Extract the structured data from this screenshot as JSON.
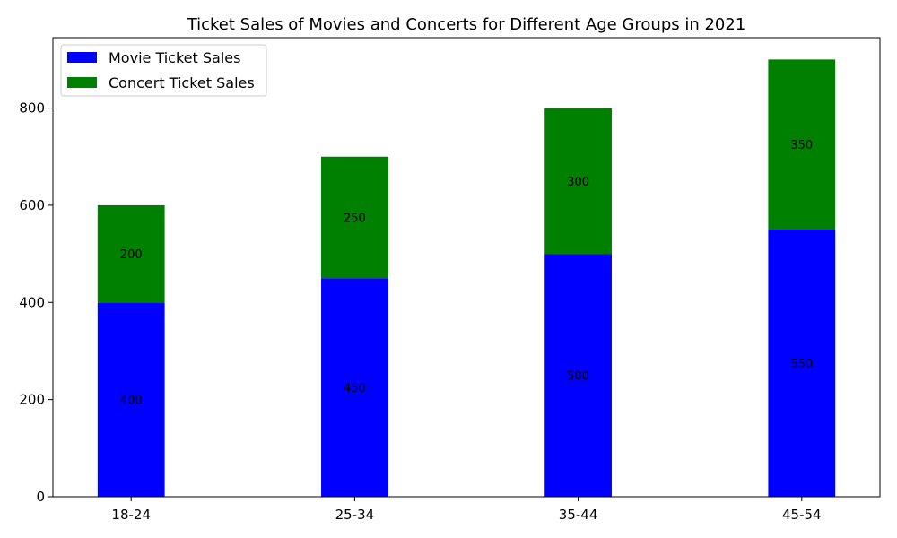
{
  "chart_data": {
    "type": "bar",
    "stacked": true,
    "title": "Ticket Sales of Movies and Concerts for Different Age Groups in 2021",
    "xlabel": "",
    "ylabel": "",
    "categories": [
      "18-24",
      "25-34",
      "35-44",
      "45-54"
    ],
    "series": [
      {
        "name": "Movie Ticket Sales",
        "values": [
          400,
          450,
          500,
          550
        ],
        "color": "#0000ff"
      },
      {
        "name": "Concert Ticket Sales",
        "values": [
          200,
          250,
          300,
          350
        ],
        "color": "#008000"
      }
    ],
    "ylim": [
      0,
      945
    ],
    "yticks": [
      0,
      200,
      400,
      600,
      800
    ],
    "grid": false,
    "legend_position": "top-left"
  }
}
